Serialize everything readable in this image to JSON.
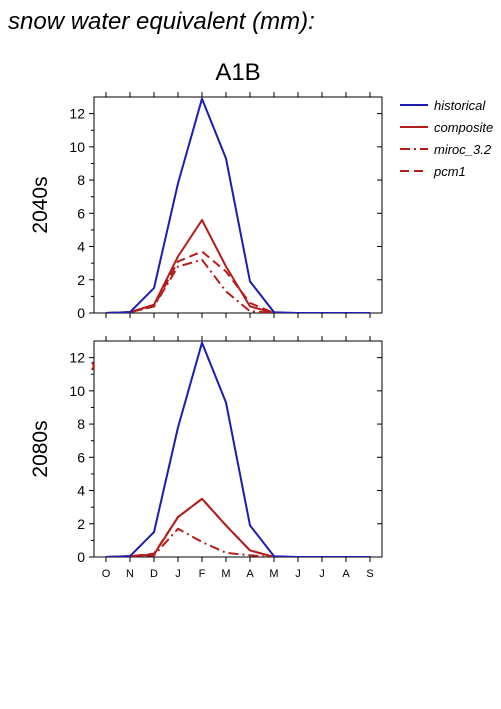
{
  "page_title": "snow water equivalent (mm):",
  "scenario": "A1B",
  "legend": [
    {
      "label": "historical",
      "color": "#1c1cb4",
      "dash": "solid"
    },
    {
      "label": "composite",
      "color": "#b41c1c",
      "dash": "solid"
    },
    {
      "label": "miroc_3.2",
      "color": "#b41c1c",
      "dash": "dashdot"
    },
    {
      "label": "pcm1",
      "color": "#b41c1c",
      "dash": "dashed"
    }
  ],
  "chart_data": [
    {
      "type": "line",
      "title": "A1B",
      "ylabel": "2040s",
      "xlabel": "",
      "categories": [
        "O",
        "N",
        "D",
        "J",
        "F",
        "M",
        "A",
        "M",
        "J",
        "J",
        "A",
        "S"
      ],
      "ylim": [
        0,
        13
      ],
      "yticks": [
        0,
        2,
        4,
        6,
        8,
        10,
        12
      ],
      "series": [
        {
          "name": "historical",
          "values": [
            0,
            0.05,
            1.5,
            7.8,
            12.9,
            9.3,
            1.9,
            0.05,
            0,
            0,
            0,
            0
          ]
        },
        {
          "name": "composite",
          "values": [
            0,
            0.05,
            0.5,
            3.4,
            5.6,
            2.8,
            0.4,
            0,
            0,
            0,
            0,
            0
          ]
        },
        {
          "name": "miroc_3.2",
          "values": [
            0,
            0.05,
            0.4,
            2.8,
            3.2,
            1.3,
            0.1,
            0,
            0,
            0,
            0,
            0
          ]
        },
        {
          "name": "pcm1",
          "values": [
            0,
            0.05,
            0.4,
            3.1,
            3.7,
            2.5,
            0.6,
            0,
            0,
            0,
            0,
            0
          ]
        }
      ]
    },
    {
      "type": "line",
      "title": "",
      "ylabel": "2080s",
      "xlabel": "",
      "categories": [
        "O",
        "N",
        "D",
        "J",
        "F",
        "M",
        "A",
        "M",
        "J",
        "J",
        "A",
        "S"
      ],
      "ylim": [
        0,
        13
      ],
      "yticks": [
        0,
        2,
        4,
        6,
        8,
        10,
        12
      ],
      "series": [
        {
          "name": "historical",
          "values": [
            0,
            0.05,
            1.5,
            7.8,
            12.9,
            9.3,
            1.9,
            0.05,
            0,
            0,
            0,
            0
          ]
        },
        {
          "name": "composite",
          "values": [
            0,
            0.05,
            0.15,
            2.4,
            3.5,
            1.9,
            0.4,
            0,
            0,
            0,
            0,
            0
          ]
        },
        {
          "name": "miroc_3.2",
          "values": [
            0,
            0.02,
            0.1,
            1.7,
            0.9,
            0.25,
            0.1,
            0,
            0,
            0,
            0,
            0
          ]
        },
        {
          "name": "pcm1",
          "values": [
            0,
            0.05,
            0.2,
            2.4,
            3.5,
            1.9,
            0.4,
            0,
            0,
            0,
            0,
            0
          ]
        }
      ]
    }
  ]
}
